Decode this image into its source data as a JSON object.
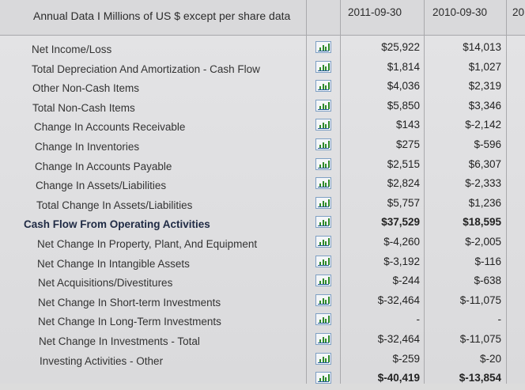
{
  "header": {
    "title": "Annual Data I Millions of US $ except per share data",
    "col1": "2011-09-30",
    "col2": "2010-09-30",
    "col3": "20"
  },
  "colors": {
    "bar_green": "#2f8a2a",
    "bar_blue": "#245c9b"
  },
  "rows": [
    {
      "label": "Net Income/Loss",
      "v1": "$25,922",
      "v2": "$14,013"
    },
    {
      "label": "Total Depreciation And Amortization - Cash Flow",
      "v1": "$1,814",
      "v2": "$1,027"
    },
    {
      "label": "Other Non-Cash Items",
      "v1": "$4,036",
      "v2": "$2,319"
    },
    {
      "label": "Total Non-Cash Items",
      "v1": "$5,850",
      "v2": "$3,346"
    },
    {
      "label": "Change In Accounts Receivable",
      "v1": "$143",
      "v2": "$-2,142"
    },
    {
      "label": "Change In Inventories",
      "v1": "$275",
      "v2": "$-596"
    },
    {
      "label": "Change In Accounts Payable",
      "v1": "$2,515",
      "v2": "$6,307"
    },
    {
      "label": "Change In Assets/Liabilities",
      "v1": "$2,824",
      "v2": "$-2,333"
    },
    {
      "label": "Total Change In Assets/Liabilities",
      "v1": "$5,757",
      "v2": "$1,236"
    },
    {
      "label": "Cash Flow From Operating Activities",
      "v1": "$37,529",
      "v2": "$18,595",
      "bold": true
    },
    {
      "label": "Net Change In Property, Plant, And Equipment",
      "v1": "$-4,260",
      "v2": "$-2,005"
    },
    {
      "label": "Net Change In Intangible Assets",
      "v1": "$-3,192",
      "v2": "$-116"
    },
    {
      "label": "Net Acquisitions/Divestitures",
      "v1": "$-244",
      "v2": "$-638"
    },
    {
      "label": "Net Change In Short-term Investments",
      "v1": "$-32,464",
      "v2": "$-11,075"
    },
    {
      "label": "Net Change In Long-Term Investments",
      "v1": "-",
      "v2": "-"
    },
    {
      "label": "Net Change In Investments - Total",
      "v1": "$-32,464",
      "v2": "$-11,075"
    },
    {
      "label": "Investing Activities - Other",
      "v1": "$-259",
      "v2": "$-20"
    },
    {
      "label": "",
      "v1": "$-40,419",
      "v2": "$-13,854",
      "bold": true
    }
  ]
}
